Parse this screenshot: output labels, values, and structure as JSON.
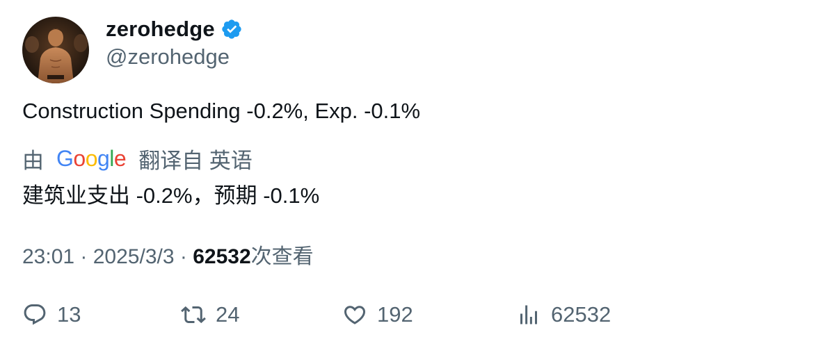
{
  "author": {
    "display_name": "zerohedge",
    "handle": "@zerohedge",
    "verified_color": "#1d9bf0"
  },
  "tweet": {
    "text": "Construction Spending -0.2%, Exp. -0.1%"
  },
  "translation": {
    "prefix": "由",
    "provider": "Google",
    "label": "翻译自 英语",
    "text": "建筑业支出 -0.2%，预期 -0.1%"
  },
  "meta": {
    "time": "23:01",
    "separator": "·",
    "date": "2025/3/3",
    "views_count": "62532",
    "views_label": "次查看"
  },
  "actions": {
    "replies": "13",
    "retweets": "24",
    "likes": "192",
    "views": "62532"
  }
}
